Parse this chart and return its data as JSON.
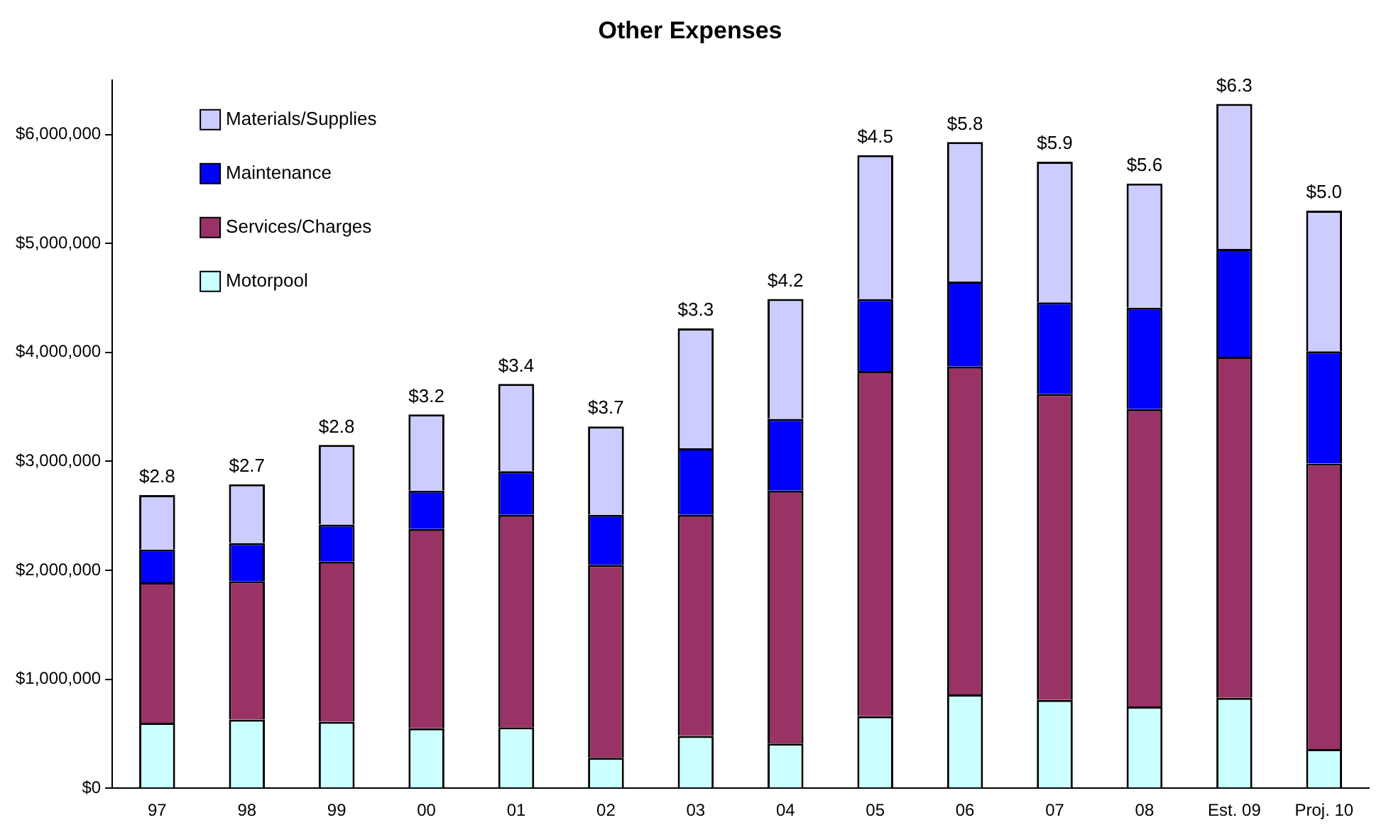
{
  "chart_data": {
    "type": "bar",
    "title": "Other Expenses",
    "stacked": true,
    "grid": false,
    "legend": "top left",
    "categories": [
      "97",
      "98",
      "99",
      "00",
      "01",
      "02",
      "03",
      "04",
      "05",
      "06",
      "07",
      "08",
      "Est. 09",
      "Proj. 10"
    ],
    "series": [
      {
        "name": "Motorpool",
        "color": "#ccffff",
        "values": [
          600000,
          630000,
          610000,
          550000,
          560000,
          280000,
          480000,
          410000,
          660000,
          860000,
          810000,
          750000,
          830000,
          360000
        ]
      },
      {
        "name": "Services/Charges",
        "color": "#993366",
        "values": [
          1290000,
          1270000,
          1470000,
          1830000,
          1950000,
          1770000,
          2030000,
          2320000,
          3170000,
          3010000,
          2810000,
          2730000,
          3130000,
          2620000
        ]
      },
      {
        "name": "Maintenance",
        "color": "#0000ff",
        "values": [
          300000,
          350000,
          340000,
          350000,
          400000,
          460000,
          610000,
          660000,
          660000,
          780000,
          840000,
          930000,
          990000,
          1030000
        ]
      },
      {
        "name": "Materials/Supplies",
        "color": "#ccccff",
        "values": [
          500000,
          540000,
          730000,
          700000,
          800000,
          810000,
          1100000,
          1100000,
          1320000,
          1280000,
          1290000,
          1140000,
          1330000,
          1290000
        ]
      }
    ],
    "annotations": [
      {
        "text": "$2.8",
        "x": "97",
        "y": 2690000
      },
      {
        "text": "$2.7",
        "x": "98",
        "y": 2790000
      },
      {
        "text": "$2.8",
        "x": "99",
        "y": 3150000
      },
      {
        "text": "$3.2",
        "x": "00",
        "y": 3430000
      },
      {
        "text": "$3.4",
        "x": "01",
        "y": 3710000
      },
      {
        "text": "$3.7",
        "x": "02",
        "y": 3320000
      },
      {
        "text": "$3.3",
        "x": "03",
        "y": 4220000
      },
      {
        "text": "$4.2",
        "x": "04",
        "y": 4490000
      },
      {
        "text": "$4.5",
        "x": "05",
        "y": 5810000
      },
      {
        "text": "$5.8",
        "x": "06",
        "y": 5930000
      },
      {
        "text": "$5.9",
        "x": "07",
        "y": 5750000
      },
      {
        "text": "$5.6",
        "x": "08",
        "y": 5550000
      },
      {
        "text": "$6.3",
        "x": "Est. 09",
        "y": 6280000
      },
      {
        "text": "$5.0",
        "x": "Proj. 10",
        "y": 5300000
      }
    ],
    "ylim": [
      0,
      6500000
    ],
    "yticks": [
      {
        "value": 0,
        "label": "$0"
      },
      {
        "value": 1000000,
        "label": "$1,000,000"
      },
      {
        "value": 2000000,
        "label": "$2,000,000"
      },
      {
        "value": 3000000,
        "label": "$3,000,000"
      },
      {
        "value": 4000000,
        "label": "$4,000,000"
      },
      {
        "value": 5000000,
        "label": "$5,000,000"
      },
      {
        "value": 6000000,
        "label": "$6,000,000"
      }
    ]
  }
}
